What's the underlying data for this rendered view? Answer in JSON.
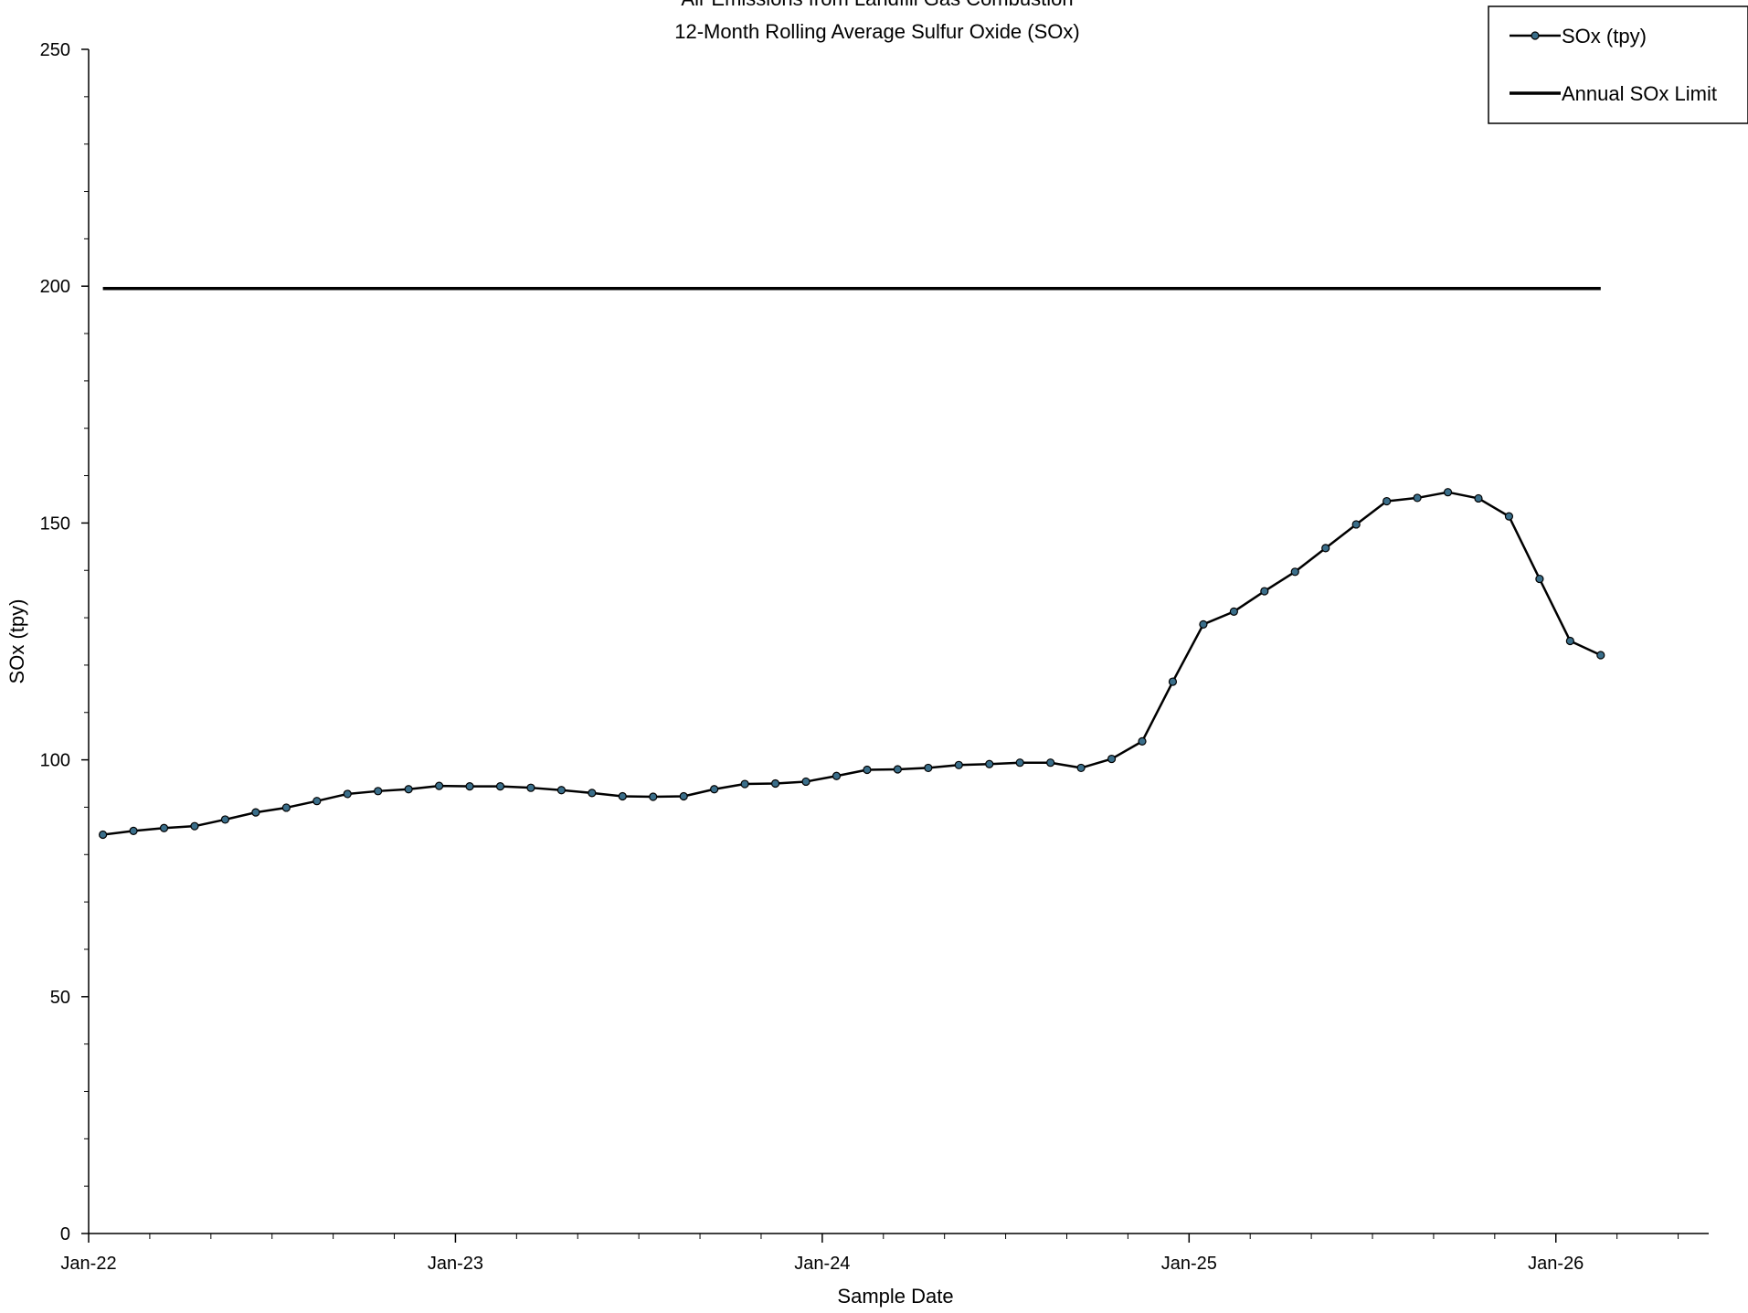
{
  "chart_data": {
    "type": "line",
    "title": "Air Emissions from Landfill Gas Combustion",
    "subtitle": "12-Month Rolling  Average Sulfur Oxide (SOx)",
    "xlabel": "Sample Date",
    "ylabel": "SOx (tpy)",
    "ylim": [
      0,
      250
    ],
    "yticks": [
      0,
      50,
      100,
      150,
      200,
      250
    ],
    "xlim": [
      "2022-01",
      "2026-06"
    ],
    "xticks": [
      {
        "date": "2022-01",
        "label": "Jan-22"
      },
      {
        "date": "2023-01",
        "label": "Jan-23"
      },
      {
        "date": "2024-01",
        "label": "Jan-24"
      },
      {
        "date": "2025-01",
        "label": "Jan-25"
      },
      {
        "date": "2026-01",
        "label": "Jan-26"
      }
    ],
    "legend_position": "top-right",
    "grid": false,
    "series": [
      {
        "name": "SOx (tpy)",
        "color": "#000000",
        "marker_color": "#3a6e8a",
        "points": [
          [
            "2022-01-15",
            84.2
          ],
          [
            "2022-02-15",
            85.0
          ],
          [
            "2022-03-15",
            85.6
          ],
          [
            "2022-04-15",
            86.0
          ],
          [
            "2022-05-15",
            87.4
          ],
          [
            "2022-06-15",
            88.9
          ],
          [
            "2022-07-15",
            89.9
          ],
          [
            "2022-08-15",
            91.3
          ],
          [
            "2022-09-15",
            92.8
          ],
          [
            "2022-10-15",
            93.4
          ],
          [
            "2022-11-15",
            93.8
          ],
          [
            "2022-12-15",
            94.5
          ],
          [
            "2023-01-15",
            94.4
          ],
          [
            "2023-02-15",
            94.4
          ],
          [
            "2023-03-15",
            94.1
          ],
          [
            "2023-04-15",
            93.6
          ],
          [
            "2023-05-15",
            93.0
          ],
          [
            "2023-06-15",
            92.3
          ],
          [
            "2023-07-15",
            92.2
          ],
          [
            "2023-08-15",
            92.3
          ],
          [
            "2023-09-15",
            93.8
          ],
          [
            "2023-10-15",
            94.9
          ],
          [
            "2023-11-15",
            95.0
          ],
          [
            "2023-12-15",
            95.4
          ],
          [
            "2024-01-15",
            96.6
          ],
          [
            "2024-02-15",
            97.9
          ],
          [
            "2024-03-15",
            98.0
          ],
          [
            "2024-04-15",
            98.3
          ],
          [
            "2024-05-15",
            98.9
          ],
          [
            "2024-06-15",
            99.1
          ],
          [
            "2024-07-15",
            99.4
          ],
          [
            "2024-08-15",
            99.4
          ],
          [
            "2024-09-15",
            98.3
          ],
          [
            "2024-10-15",
            100.2
          ],
          [
            "2024-11-15",
            103.9
          ],
          [
            "2024-12-15",
            116.5
          ],
          [
            "2025-01-15",
            128.6
          ],
          [
            "2025-02-15",
            131.3
          ],
          [
            "2025-03-15",
            135.6
          ],
          [
            "2025-04-15",
            139.7
          ],
          [
            "2025-05-15",
            144.7
          ],
          [
            "2025-06-15",
            149.7
          ],
          [
            "2025-07-15",
            154.6
          ],
          [
            "2025-08-15",
            155.3
          ],
          [
            "2025-09-15",
            156.5
          ],
          [
            "2025-10-15",
            155.2
          ],
          [
            "2025-11-15",
            151.4
          ],
          [
            "2025-12-15",
            138.2
          ],
          [
            "2026-01-15",
            125.1
          ],
          [
            "2026-02-15",
            122.1
          ]
        ]
      },
      {
        "name": "Annual SOx Limit",
        "color": "#000000",
        "points": [
          [
            "2022-01-15",
            199.5
          ],
          [
            "2026-02-15",
            199.5
          ]
        ]
      }
    ]
  }
}
